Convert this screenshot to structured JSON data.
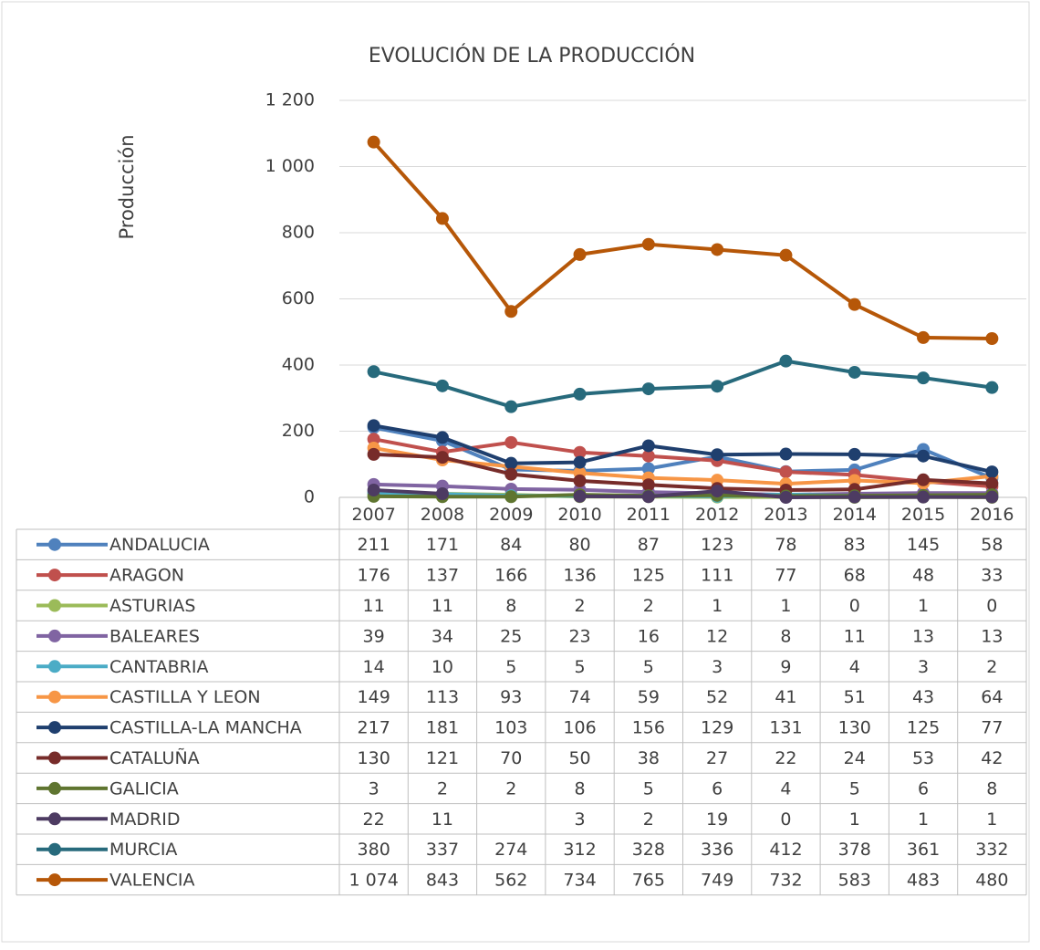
{
  "chart_data": {
    "type": "line",
    "title": "EVOLUCIÓN  DE LA PRODUCCIÓN",
    "y_label": "Producción",
    "categories": [
      "2007",
      "2008",
      "2009",
      "2010",
      "2011",
      "2012",
      "2013",
      "2014",
      "2015",
      "2016"
    ],
    "ylim": [
      0,
      1200
    ],
    "yticks": [
      0,
      200,
      400,
      600,
      800,
      {
        "value": 1000,
        "label": "1 000"
      },
      {
        "value": 1200,
        "label": "1 200"
      }
    ],
    "grid": true,
    "series": [
      {
        "name": "ANDALUCIA",
        "color": "#4f81bd",
        "values": [
          211,
          171,
          84,
          80,
          87,
          123,
          78,
          83,
          145,
          58
        ]
      },
      {
        "name": "ARAGON",
        "color": "#c0504d",
        "values": [
          176,
          137,
          166,
          136,
          125,
          111,
          77,
          68,
          48,
          33
        ]
      },
      {
        "name": "ASTURIAS",
        "color": "#9bbb59",
        "values": [
          11,
          11,
          8,
          2,
          2,
          1,
          1,
          0,
          1,
          0
        ]
      },
      {
        "name": "BALEARES",
        "color": "#8064a2",
        "values": [
          39,
          34,
          25,
          23,
          16,
          12,
          8,
          11,
          13,
          13
        ]
      },
      {
        "name": "CANTABRIA",
        "color": "#4bacc6",
        "values": [
          14,
          10,
          5,
          5,
          5,
          3,
          9,
          4,
          3,
          2
        ]
      },
      {
        "name": "CASTILLA Y LEON",
        "color": "#f79646",
        "values": [
          149,
          113,
          93,
          74,
          59,
          52,
          41,
          51,
          43,
          64
        ]
      },
      {
        "name": "CASTILLA-LA MANCHA",
        "color": "#1f3f6e",
        "values": [
          217,
          181,
          103,
          106,
          156,
          129,
          131,
          130,
          125,
          77
        ]
      },
      {
        "name": "CATALUÑA",
        "color": "#772c2a",
        "values": [
          130,
          121,
          70,
          50,
          38,
          27,
          22,
          24,
          53,
          42
        ]
      },
      {
        "name": "GALICIA",
        "color": "#5f7530",
        "values": [
          3,
          2,
          2,
          8,
          5,
          6,
          4,
          5,
          6,
          8
        ]
      },
      {
        "name": "MADRID",
        "color": "#4d3b62",
        "values": [
          22,
          11,
          null,
          3,
          2,
          19,
          0,
          1,
          1,
          1
        ]
      },
      {
        "name": "MURCIA",
        "color": "#276a7c",
        "values": [
          380,
          337,
          274,
          312,
          328,
          336,
          412,
          378,
          361,
          332
        ]
      },
      {
        "name": "VALENCIA",
        "color": "#b65708",
        "values": [
          1074,
          843,
          562,
          734,
          765,
          749,
          732,
          583,
          483,
          480
        ],
        "value_labels": [
          "1 074",
          "843",
          "562",
          "734",
          "765",
          "749",
          "732",
          "583",
          "483",
          "480"
        ]
      }
    ]
  }
}
